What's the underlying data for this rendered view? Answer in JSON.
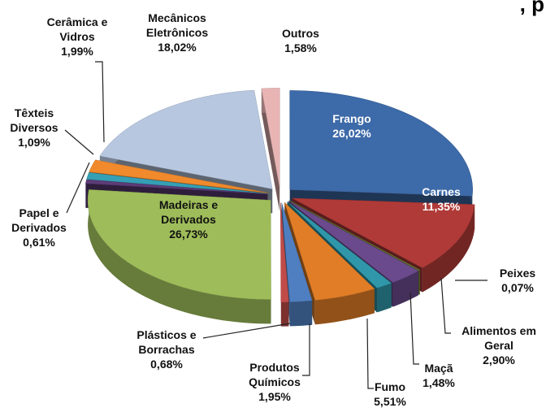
{
  "chart_data": {
    "type": "pie3d",
    "title": ", p",
    "categories": [
      "Frango",
      "Carnes",
      "Peixes",
      "Alimentos em Geral",
      "Maçã",
      "Fumo",
      "Produtos Químicos",
      "Plásticos e Borrachas",
      "Madeiras e Derivados",
      "Papel e Derivados",
      "Têxteis Diversos",
      "Cerâmica e Vidros",
      "Mecânicos Eletrônicos",
      "Outros"
    ],
    "values": [
      26.02,
      11.35,
      0.07,
      2.9,
      1.48,
      5.51,
      1.95,
      0.68,
      26.73,
      0.61,
      1.09,
      1.99,
      18.02,
      1.58
    ],
    "value_labels": [
      "26,02%",
      "11,35%",
      "0,07%",
      "2,90%",
      "1,48%",
      "5,51%",
      "1,95%",
      "0,68%",
      "26,73%",
      "0,61%",
      "1,09%",
      "1,99%",
      "18,02%",
      "1,58%"
    ],
    "colors": [
      "#3d6aa8",
      "#b03a37",
      "#7b8f3a",
      "#6a4a8c",
      "#2f97a9",
      "#e07d26",
      "#4f7fc0",
      "#c04b48",
      "#9ebd5a",
      "#5c3c78",
      "#35a0b5",
      "#f08a2c",
      "#b8c7e0",
      "#e8b4b4"
    ]
  }
}
